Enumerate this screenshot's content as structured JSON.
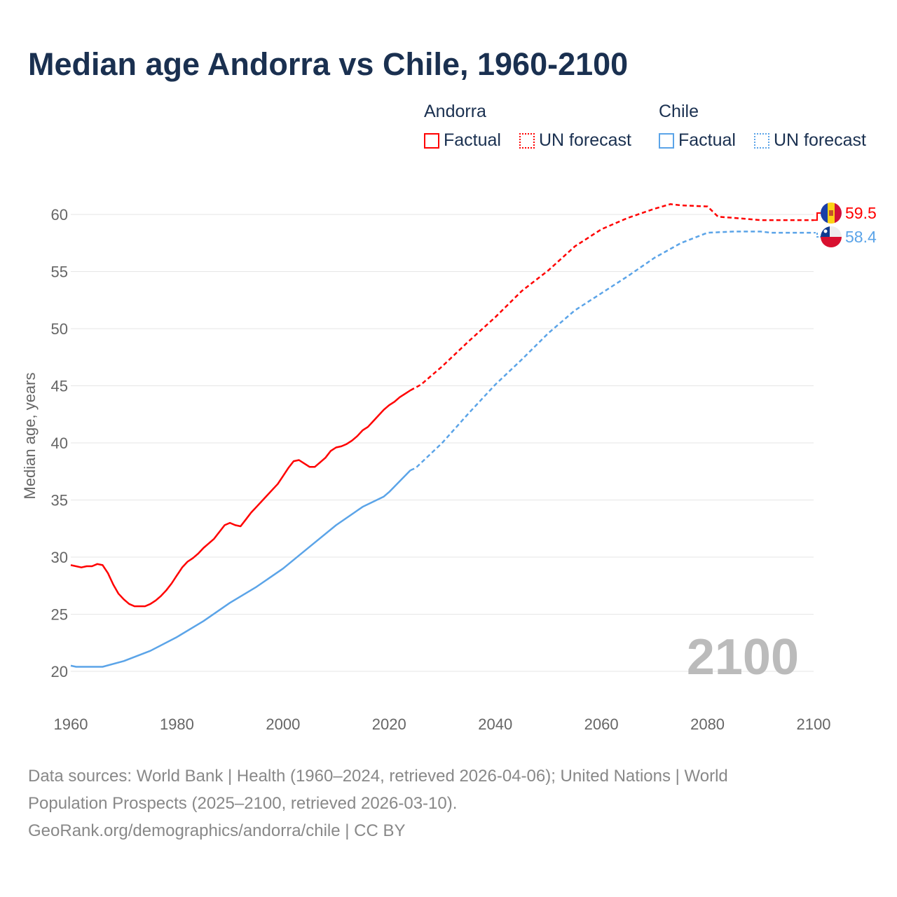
{
  "title": "Median age Andorra vs Chile, 1960-2100",
  "legend": {
    "groups": [
      {
        "name": "Andorra",
        "factual": "Factual",
        "forecast": "UN forecast",
        "color": "#ff0000"
      },
      {
        "name": "Chile",
        "factual": "Factual",
        "forecast": "UN forecast",
        "color": "#5ba4e8"
      }
    ]
  },
  "watermark_year": "2100",
  "footer": {
    "line1": "Data sources: World Bank | Health (1960–2024, retrieved 2026-04-06); United Nations | World",
    "line2": "Population Prospects (2025–2100, retrieved 2026-03-10).",
    "line3": "GeoRank.org/demographics/andorra/chile | CC BY"
  },
  "chart_data": {
    "type": "line",
    "title": "Median age Andorra vs Chile, 1960-2100",
    "xlabel": "",
    "ylabel": "Median age, years",
    "xlim": [
      1960,
      2100
    ],
    "ylim": [
      20,
      60
    ],
    "xticks": [
      "1960",
      "1980",
      "2000",
      "2020",
      "2040",
      "2060",
      "2080",
      "2100"
    ],
    "yticks": [
      "20",
      "25",
      "30",
      "35",
      "40",
      "45",
      "50",
      "55",
      "60"
    ],
    "grid": true,
    "series": [
      {
        "name": "Andorra",
        "kind": "factual",
        "color": "#ff0000",
        "points": [
          [
            1960,
            29.3
          ],
          [
            1962,
            29.1
          ],
          [
            1963,
            29.2
          ],
          [
            1964,
            29.2
          ],
          [
            1965,
            29.4
          ],
          [
            1966,
            29.3
          ],
          [
            1967,
            28.6
          ],
          [
            1968,
            27.6
          ],
          [
            1969,
            26.8
          ],
          [
            1970,
            26.3
          ],
          [
            1971,
            25.9
          ],
          [
            1972,
            25.7
          ],
          [
            1973,
            25.7
          ],
          [
            1974,
            25.7
          ],
          [
            1975,
            25.9
          ],
          [
            1976,
            26.2
          ],
          [
            1977,
            26.6
          ],
          [
            1978,
            27.1
          ],
          [
            1979,
            27.7
          ],
          [
            1980,
            28.4
          ],
          [
            1981,
            29.1
          ],
          [
            1982,
            29.6
          ],
          [
            1983,
            29.9
          ],
          [
            1984,
            30.3
          ],
          [
            1985,
            30.8
          ],
          [
            1986,
            31.2
          ],
          [
            1987,
            31.6
          ],
          [
            1988,
            32.2
          ],
          [
            1989,
            32.8
          ],
          [
            1990,
            33.0
          ],
          [
            1991,
            32.8
          ],
          [
            1992,
            32.7
          ],
          [
            1993,
            33.3
          ],
          [
            1994,
            33.9
          ],
          [
            1995,
            34.4
          ],
          [
            1996,
            34.9
          ],
          [
            1997,
            35.4
          ],
          [
            1998,
            35.9
          ],
          [
            1999,
            36.4
          ],
          [
            2000,
            37.1
          ],
          [
            2001,
            37.8
          ],
          [
            2002,
            38.4
          ],
          [
            2003,
            38.5
          ],
          [
            2004,
            38.2
          ],
          [
            2005,
            37.9
          ],
          [
            2006,
            37.9
          ],
          [
            2007,
            38.3
          ],
          [
            2008,
            38.7
          ],
          [
            2009,
            39.3
          ],
          [
            2010,
            39.6
          ],
          [
            2011,
            39.7
          ],
          [
            2012,
            39.9
          ],
          [
            2013,
            40.2
          ],
          [
            2014,
            40.6
          ],
          [
            2015,
            41.1
          ],
          [
            2016,
            41.4
          ],
          [
            2017,
            41.9
          ],
          [
            2018,
            42.4
          ],
          [
            2019,
            42.9
          ],
          [
            2020,
            43.3
          ],
          [
            2021,
            43.6
          ],
          [
            2022,
            44.0
          ],
          [
            2023,
            44.3
          ],
          [
            2024,
            44.6
          ]
        ]
      },
      {
        "name": "Andorra",
        "kind": "forecast",
        "color": "#ff0000",
        "points": [
          [
            2024,
            44.6
          ],
          [
            2026,
            45.1
          ],
          [
            2030,
            46.7
          ],
          [
            2035,
            48.9
          ],
          [
            2040,
            51.0
          ],
          [
            2045,
            53.3
          ],
          [
            2050,
            55.1
          ],
          [
            2055,
            57.2
          ],
          [
            2060,
            58.7
          ],
          [
            2065,
            59.7
          ],
          [
            2070,
            60.5
          ],
          [
            2073,
            60.9
          ],
          [
            2075,
            60.8
          ],
          [
            2080,
            60.7
          ],
          [
            2082,
            59.8
          ],
          [
            2085,
            59.7
          ],
          [
            2090,
            59.5
          ],
          [
            2099,
            59.5
          ],
          [
            2100,
            59.5
          ]
        ]
      },
      {
        "name": "Chile",
        "kind": "factual",
        "color": "#5ba4e8",
        "points": [
          [
            1960,
            20.5
          ],
          [
            1961,
            20.4
          ],
          [
            1966,
            20.4
          ],
          [
            1970,
            20.9
          ],
          [
            1975,
            21.8
          ],
          [
            1980,
            23.0
          ],
          [
            1985,
            24.4
          ],
          [
            1990,
            26.0
          ],
          [
            1995,
            27.4
          ],
          [
            2000,
            29.0
          ],
          [
            2005,
            30.9
          ],
          [
            2010,
            32.8
          ],
          [
            2015,
            34.4
          ],
          [
            2019,
            35.3
          ],
          [
            2020,
            35.7
          ],
          [
            2024,
            37.6
          ]
        ]
      },
      {
        "name": "Chile",
        "kind": "forecast",
        "color": "#5ba4e8",
        "points": [
          [
            2024,
            37.6
          ],
          [
            2025,
            37.8
          ],
          [
            2030,
            40.0
          ],
          [
            2035,
            42.6
          ],
          [
            2040,
            45.1
          ],
          [
            2045,
            47.3
          ],
          [
            2050,
            49.6
          ],
          [
            2055,
            51.6
          ],
          [
            2060,
            53.1
          ],
          [
            2065,
            54.6
          ],
          [
            2070,
            56.2
          ],
          [
            2075,
            57.5
          ],
          [
            2080,
            58.4
          ],
          [
            2085,
            58.5
          ],
          [
            2090,
            58.5
          ],
          [
            2092,
            58.4
          ],
          [
            2100,
            58.4
          ]
        ]
      }
    ],
    "end_labels": [
      {
        "name": "Andorra",
        "value": "59.5",
        "color": "#ff0000"
      },
      {
        "name": "Chile",
        "value": "58.4",
        "color": "#5ba4e8"
      }
    ]
  }
}
